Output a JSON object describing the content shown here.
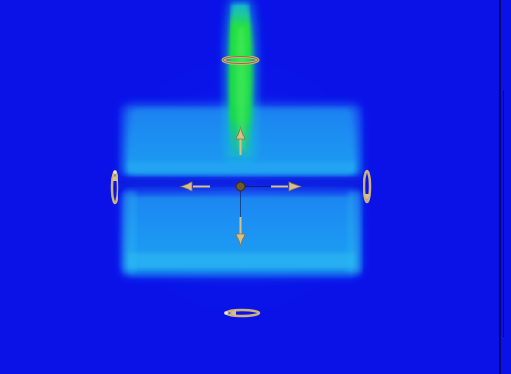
{
  "viewport": {
    "background": "#0a12e8",
    "plume_color": "#22e040",
    "volume_color": "#1a7ff0",
    "gizmo_color": "#d8c08a"
  },
  "gizmo": {
    "center": "move-handle",
    "axes": [
      "x-axis",
      "y-axis"
    ],
    "handles": [
      "translate-up-arrow",
      "translate-down-arrow",
      "translate-left-arrow",
      "translate-right-arrow",
      "rotate-ring-top",
      "rotate-ring-left",
      "rotate-ring-right",
      "rotate-ring-bottom"
    ]
  }
}
